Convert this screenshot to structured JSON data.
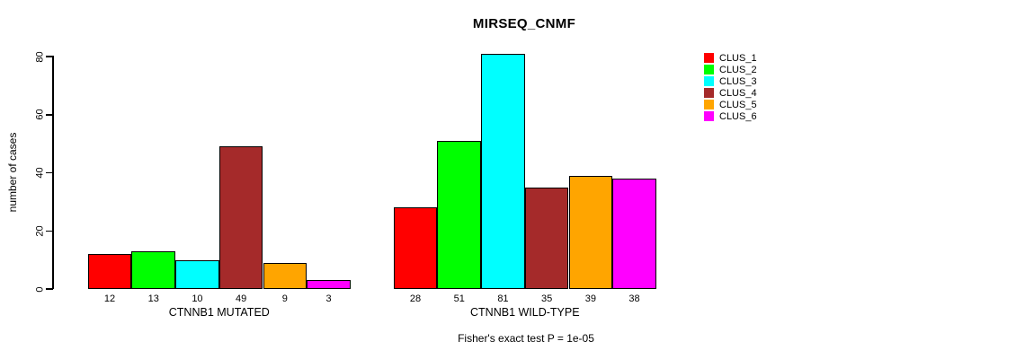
{
  "chart_data": {
    "type": "bar",
    "title": "MIRSEQ_CNMF",
    "ylabel": "number of cases",
    "xlabel": "",
    "ylim": [
      0,
      80
    ],
    "yticks": [
      0,
      20,
      40,
      60,
      80
    ],
    "grid": false,
    "legend_position": "right",
    "groups": [
      {
        "label": "CTNNB1 MUTATED",
        "values": [
          12,
          13,
          10,
          49,
          9,
          3
        ]
      },
      {
        "label": "CTNNB1 WILD-TYPE",
        "values": [
          28,
          51,
          81,
          35,
          39,
          38
        ]
      }
    ],
    "series": [
      {
        "name": "CLUS_1",
        "color": "#FF0000"
      },
      {
        "name": "CLUS_2",
        "color": "#00FF00"
      },
      {
        "name": "CLUS_3",
        "color": "#00FFFF"
      },
      {
        "name": "CLUS_4",
        "color": "#A52A2A"
      },
      {
        "name": "CLUS_5",
        "color": "#FFA500"
      },
      {
        "name": "CLUS_6",
        "color": "#FF00FF"
      }
    ],
    "annotation": "Fisher's exact test P = 1e-05"
  }
}
